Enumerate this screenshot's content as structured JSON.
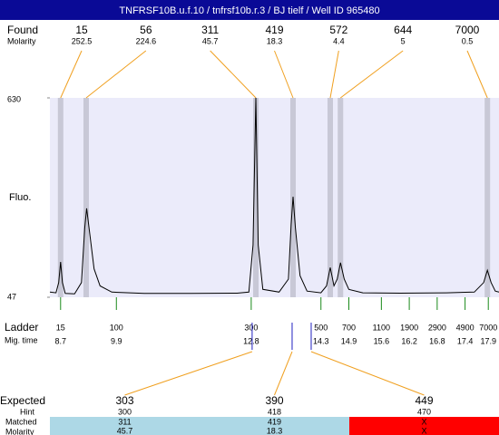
{
  "title": "TNFRSF10B.u.f.10 / tnfrsf10b.r.3 / BJ tielf / Well ID 965480",
  "chart_data": {
    "type": "electropherogram",
    "y_label": "Fluo.",
    "ylim": [
      47,
      630
    ],
    "yticks": [
      47,
      630
    ],
    "xlim": [
      8.47,
      18.13
    ],
    "plot_color": "#ebebfa",
    "trace": {
      "color": "#000000",
      "x": [
        8.47,
        8.6,
        8.66,
        8.7,
        8.74,
        8.8,
        9.0,
        9.15,
        9.22,
        9.26,
        9.32,
        9.42,
        9.55,
        9.8,
        10.5,
        11.5,
        12.5,
        12.75,
        12.84,
        12.9,
        12.95,
        13.05,
        13.4,
        13.6,
        13.66,
        13.7,
        13.75,
        13.85,
        14.0,
        14.3,
        14.42,
        14.5,
        14.58,
        14.65,
        14.72,
        14.8,
        14.9,
        15.2,
        16.0,
        17.0,
        17.6,
        17.8,
        17.88,
        17.96,
        18.05,
        18.13
      ],
      "values": [
        62,
        60,
        90,
        150,
        90,
        58,
        57,
        90,
        250,
        307,
        240,
        130,
        80,
        62,
        58,
        58,
        59,
        62,
        200,
        630,
        200,
        70,
        62,
        100,
        260,
        341,
        250,
        110,
        65,
        60,
        80,
        134,
        80,
        100,
        148,
        100,
        70,
        60,
        59,
        60,
        62,
        90,
        126,
        90,
        65,
        62
      ]
    },
    "found": {
      "label": "Found",
      "molarity_label": "Molarity",
      "band_color": "#c8c8d6",
      "connector_color": "#f0a020",
      "peaks": [
        {
          "size": 15,
          "molarity": 252.5,
          "x": 8.7
        },
        {
          "size": 56,
          "molarity": 224.6,
          "x": 9.25
        },
        {
          "size": 311,
          "molarity": 45.7,
          "x": 12.9
        },
        {
          "size": 419,
          "molarity": 18.3,
          "x": 13.7
        },
        {
          "size": 572,
          "molarity": 4.4,
          "x": 14.5
        },
        {
          "size": 644,
          "molarity": 5,
          "x": 14.72
        },
        {
          "size": 7000,
          "molarity": 0.5,
          "x": 17.88
        }
      ]
    },
    "ladder": {
      "label": "Ladder",
      "time_label": "Mig. time",
      "color": "#1a8a1a",
      "peaks": [
        {
          "size": 15,
          "x": 8.7
        },
        {
          "size": 100,
          "x": 9.9
        },
        {
          "size": 300,
          "x": 12.8
        },
        {
          "size": 500,
          "x": 14.3
        },
        {
          "size": 700,
          "x": 14.9
        },
        {
          "size": 1100,
          "x": 15.6
        },
        {
          "size": 1900,
          "x": 16.2
        },
        {
          "size": 2900,
          "x": 16.8
        },
        {
          "size": 4900,
          "x": 17.4
        },
        {
          "size": 7000,
          "x": 17.9
        }
      ]
    },
    "expected": {
      "label": "Expected",
      "hint_label": "Hint",
      "matched_label": "Matched",
      "molarity_label": "Molarity",
      "marker_color": "#2020c0",
      "connector_color": "#f0a020",
      "peaks": [
        {
          "size": 303,
          "hint": 300,
          "matched": 311,
          "molarity": 45.7,
          "x": 12.82,
          "color": "#add8e6"
        },
        {
          "size": 390,
          "hint": 418,
          "matched": 419,
          "molarity": 18.3,
          "x": 13.68,
          "color": "#add8e6"
        },
        {
          "size": 449,
          "hint": 470,
          "matched": "X",
          "molarity": "X",
          "x": 14.09,
          "color": "#ff0000"
        }
      ]
    }
  }
}
